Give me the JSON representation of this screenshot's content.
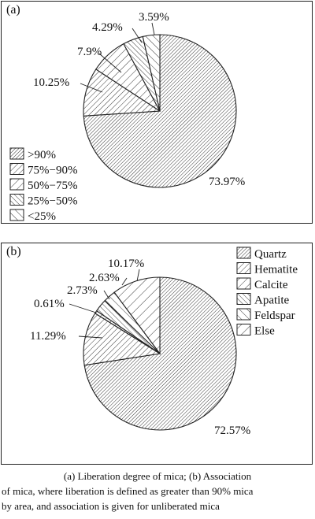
{
  "chart_data": [
    {
      "type": "pie",
      "panel_label": "(a)",
      "categories": [
        ">90%",
        "75%−90%",
        "50%−75%",
        "25%−50%",
        "<25%"
      ],
      "values": [
        73.97,
        10.25,
        7.9,
        4.29,
        3.59
      ],
      "value_labels": [
        "73.97%",
        "10.25%",
        "7.9%",
        "4.29%",
        "3.59%"
      ],
      "legend_position": "bottom-left"
    },
    {
      "type": "pie",
      "panel_label": "(b)",
      "categories": [
        "Quartz",
        "Hematite",
        "Calcite",
        "Apatite",
        "Feldspar",
        "Else"
      ],
      "values": [
        72.57,
        11.29,
        0.61,
        2.73,
        2.63,
        10.17
      ],
      "value_labels": [
        "72.57%",
        "11.29%",
        "0.61%",
        "2.73%",
        "2.63%",
        "10.17%"
      ],
      "legend_position": "top-right"
    }
  ],
  "caption": {
    "line1": "(a) Liberation degree of mica; (b) Association",
    "line2": "of mica, where liberation is defined as greater than 90% mica",
    "line3": "by area, and association is given for unliberated mica"
  }
}
